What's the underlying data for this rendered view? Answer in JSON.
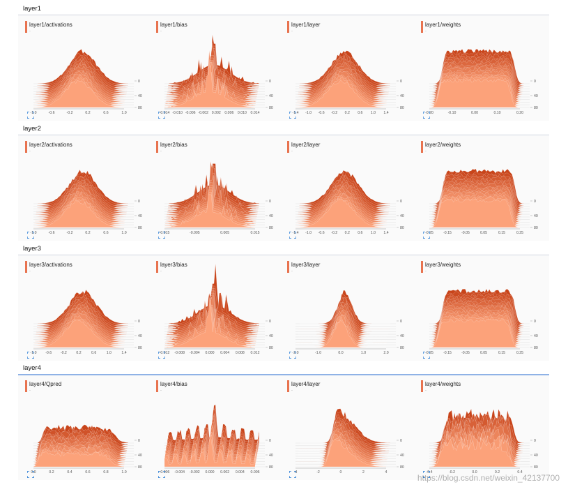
{
  "sections": [
    {
      "title": "layer1",
      "cards": [
        {
          "title": "layer1/activations",
          "subtitle": ".",
          "shape": "bell",
          "ticks": [
            "-1.0",
            "-0.6",
            "-0.2",
            "0.2",
            "0.6",
            "1.0"
          ],
          "steps": [
            "0",
            "40",
            "80"
          ]
        },
        {
          "title": "layer1/bias",
          "subtitle": ".",
          "shape": "spiky",
          "ticks": [
            "-0.014",
            "-0.010",
            "-0.006",
            "-0.002",
            "0.002",
            "0.006",
            "0.010",
            "0.014"
          ],
          "steps": [
            "0",
            "40",
            "80"
          ]
        },
        {
          "title": "layer1/layer",
          "subtitle": ".",
          "shape": "bell",
          "ticks": [
            "-1.4",
            "-1.0",
            "-0.6",
            "-0.2",
            "0.2",
            "0.6",
            "1.0",
            "1.4"
          ],
          "steps": [
            "0",
            "40",
            "80"
          ]
        },
        {
          "title": "layer1/weights",
          "subtitle": ".",
          "shape": "plateau",
          "ticks": [
            "-0.20",
            "-0.10",
            "0.00",
            "0.10",
            "0.20"
          ],
          "steps": [
            "0",
            "40",
            "80"
          ]
        }
      ]
    },
    {
      "title": "layer2",
      "cards": [
        {
          "title": "layer2/activations",
          "subtitle": ".",
          "shape": "bell",
          "ticks": [
            "-1.0",
            "-0.6",
            "-0.2",
            "0.2",
            "0.6",
            "1.0"
          ],
          "steps": [
            "0",
            "40",
            "80"
          ]
        },
        {
          "title": "layer2/bias",
          "subtitle": ".",
          "shape": "spiky",
          "ticks": [
            "-0.015",
            "-0.005",
            "0.005",
            "0.015"
          ],
          "steps": [
            "0",
            "40",
            "80"
          ]
        },
        {
          "title": "layer2/layer",
          "subtitle": ".",
          "shape": "bell",
          "ticks": [
            "-1.4",
            "-1.0",
            "-0.6",
            "-0.2",
            "0.2",
            "0.6",
            "1.0",
            "1.4"
          ],
          "steps": [
            "0",
            "40",
            "80"
          ]
        },
        {
          "title": "layer2/weights",
          "subtitle": ".",
          "shape": "plateau",
          "ticks": [
            "-0.25",
            "-0.15",
            "-0.05",
            "0.05",
            "0.15",
            "0.25"
          ],
          "steps": [
            "0",
            "40",
            "80"
          ]
        }
      ]
    },
    {
      "title": "layer3",
      "cards": [
        {
          "title": "layer3/activations",
          "subtitle": ".",
          "shape": "bell",
          "ticks": [
            "-1.0",
            "-0.6",
            "-0.2",
            "0.2",
            "0.6",
            "1.0",
            "1.4"
          ],
          "steps": [
            "0",
            "40",
            "80"
          ]
        },
        {
          "title": "layer3/bias",
          "subtitle": ".",
          "shape": "spiky",
          "ticks": [
            "-0.012",
            "-0.008",
            "-0.004",
            "0.000",
            "0.004",
            "0.008",
            "0.012"
          ],
          "steps": [
            "0",
            "40",
            "80"
          ]
        },
        {
          "title": "layer3/layer",
          "subtitle": ".",
          "shape": "narrow",
          "ticks": [
            "-2.0",
            "-1.0",
            "0.0",
            "1.0",
            "2.0"
          ],
          "steps": [
            "0",
            "40",
            "80"
          ]
        },
        {
          "title": "layer3/weights",
          "subtitle": ".",
          "shape": "plateau",
          "ticks": [
            "-0.25",
            "-0.15",
            "-0.05",
            "0.05",
            "0.15",
            "0.25"
          ],
          "steps": [
            "0",
            "40",
            "80"
          ]
        }
      ]
    },
    {
      "title": "layer4",
      "active": true,
      "cards": [
        {
          "title": "layer4/Qpred",
          "subtitle": ".",
          "shape": "skewed",
          "ticks": [
            "0.0",
            "0.2",
            "0.4",
            "0.6",
            "0.8",
            "1.0"
          ],
          "steps": [
            "0",
            "40",
            "80"
          ]
        },
        {
          "title": "layer4/bias",
          "subtitle": ".",
          "shape": "comb",
          "ticks": [
            "-0.006",
            "-0.004",
            "-0.002",
            "0.000",
            "0.002",
            "0.004",
            "0.006"
          ],
          "steps": [
            "0",
            "40",
            "80"
          ]
        },
        {
          "title": "layer4/layer",
          "subtitle": ".",
          "shape": "leftpeak",
          "ticks": [
            "-4",
            "-2",
            "0",
            "2",
            "4"
          ],
          "steps": [
            "0",
            "40",
            "80"
          ]
        },
        {
          "title": "layer4/weights",
          "subtitle": ".",
          "shape": "noisy",
          "ticks": [
            "-0.4",
            "-0.2",
            "0.0",
            "0.2",
            "0.4"
          ],
          "steps": [
            "0",
            "40",
            "80"
          ]
        }
      ]
    }
  ],
  "watermark": "https://blog.csdn.net/weixin_42137700",
  "colors": {
    "front": "#fca27a",
    "back": "#c8441a",
    "accent": "#e8734f",
    "expand": "#2d7fd6"
  }
}
